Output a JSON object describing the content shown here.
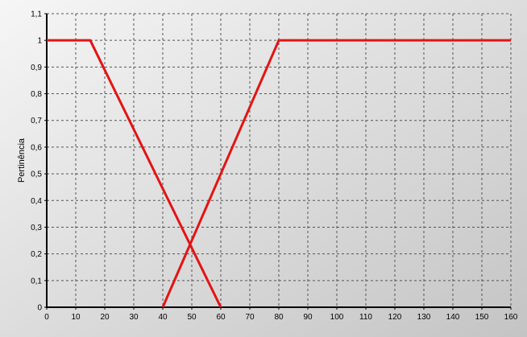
{
  "chart_data": {
    "type": "line",
    "title": "",
    "xlabel": "",
    "ylabel": "Pertinência",
    "xlim": [
      0,
      160
    ],
    "ylim": [
      0,
      1.1
    ],
    "x_ticks": [
      "0",
      "10",
      "20",
      "30",
      "40",
      "50",
      "60",
      "70",
      "80",
      "90",
      "100",
      "110",
      "120",
      "130",
      "140",
      "150",
      "160"
    ],
    "y_ticks": [
      "0",
      "0,1",
      "0,2",
      "0,3",
      "0,4",
      "0,5",
      "0,6",
      "0,7",
      "0,8",
      "0,9",
      "1",
      "1,1"
    ],
    "grid": true,
    "grid_style": "dashed",
    "series": [
      {
        "color": "#e31414",
        "x": [
          0,
          15,
          60
        ],
        "y": [
          1,
          1,
          0
        ]
      },
      {
        "color": "#e31414",
        "x": [
          40,
          80,
          160
        ],
        "y": [
          0,
          1,
          1
        ]
      }
    ]
  }
}
